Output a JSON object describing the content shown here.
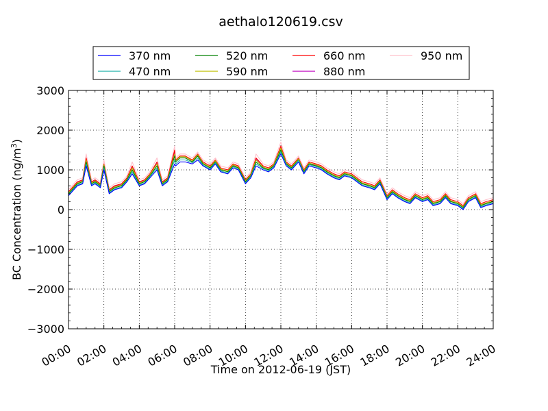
{
  "chart_data": {
    "type": "line",
    "title": "aethalo120619.csv",
    "xlabel": "Time on 2012-06-19 (JST)",
    "ylabel": "BC Concentration (ng/m3)",
    "ylabel_parts": {
      "text": "BC Concentration (ng/m",
      "superscript": "3",
      "close": ")"
    },
    "xlim": [
      "00:00",
      "24:00"
    ],
    "ylim": [
      -3000,
      3000
    ],
    "x_ticks": [
      "00:00",
      "02:00",
      "04:00",
      "06:00",
      "08:00",
      "10:00",
      "12:00",
      "14:00",
      "16:00",
      "18:00",
      "20:00",
      "22:00",
      "24:00"
    ],
    "y_ticks": [
      -3000,
      -2000,
      -1000,
      0,
      1000,
      2000,
      3000
    ],
    "y_tick_labels": [
      "−3000",
      "−2000",
      "−1000",
      "0",
      "1000",
      "2000",
      "3000"
    ],
    "grid": true,
    "legend_placement": "top-center, outside plot",
    "x_hours": [
      0,
      0.5,
      0.8,
      1.0,
      1.3,
      1.5,
      1.8,
      2.0,
      2.3,
      2.6,
      3.0,
      3.3,
      3.6,
      4.0,
      4.3,
      4.6,
      5.0,
      5.3,
      5.6,
      6.0,
      6.05,
      6.3,
      6.6,
      7.0,
      7.3,
      7.6,
      8.0,
      8.3,
      8.6,
      9.0,
      9.3,
      9.6,
      10.0,
      10.3,
      10.6,
      11.0,
      11.3,
      11.6,
      12.0,
      12.3,
      12.6,
      13.0,
      13.3,
      13.6,
      14.0,
      14.3,
      14.6,
      15.0,
      15.3,
      15.6,
      16.0,
      16.3,
      16.6,
      17.0,
      17.3,
      17.6,
      18.0,
      18.3,
      18.6,
      19.0,
      19.3,
      19.6,
      20.0,
      20.3,
      20.6,
      21.0,
      21.3,
      21.6,
      22.0,
      22.3,
      22.6,
      23.0,
      23.3,
      23.6,
      24.0
    ],
    "series": [
      {
        "name": "370 nm",
        "color": "#0000ff",
        "values": [
          350,
          600,
          650,
          1100,
          600,
          650,
          550,
          1000,
          400,
          500,
          550,
          700,
          900,
          600,
          650,
          800,
          1000,
          600,
          700,
          1150,
          1100,
          1200,
          1200,
          1150,
          1250,
          1100,
          1000,
          1150,
          950,
          900,
          1050,
          1000,
          650,
          800,
          1100,
          1000,
          950,
          1050,
          1400,
          1100,
          1000,
          1200,
          900,
          1100,
          1050,
          1000,
          900,
          800,
          750,
          850,
          800,
          700,
          600,
          550,
          500,
          650,
          250,
          400,
          300,
          200,
          150,
          300,
          200,
          250,
          100,
          150,
          300,
          150,
          100,
          0,
          200,
          300,
          50,
          100,
          150
        ]
      },
      {
        "name": "470 nm",
        "color": "#20b2aa",
        "values": [
          380,
          620,
          670,
          1150,
          620,
          670,
          570,
          1050,
          420,
          520,
          570,
          720,
          950,
          620,
          670,
          830,
          1050,
          620,
          720,
          1250,
          1150,
          1250,
          1250,
          1180,
          1300,
          1120,
          1020,
          1180,
          970,
          920,
          1080,
          1020,
          670,
          830,
          1150,
          1030,
          970,
          1080,
          1450,
          1130,
          1020,
          1240,
          920,
          1130,
          1080,
          1020,
          920,
          820,
          770,
          870,
          820,
          720,
          620,
          570,
          520,
          670,
          270,
          420,
          320,
          220,
          170,
          320,
          220,
          270,
          120,
          170,
          320,
          170,
          120,
          20,
          220,
          320,
          70,
          120,
          170
        ]
      },
      {
        "name": "520 nm",
        "color": "#008000",
        "values": [
          400,
          650,
          700,
          1200,
          650,
          700,
          600,
          1100,
          450,
          550,
          600,
          750,
          1000,
          650,
          700,
          850,
          1100,
          650,
          750,
          1350,
          1200,
          1300,
          1300,
          1200,
          1350,
          1150,
          1050,
          1200,
          1000,
          950,
          1100,
          1050,
          700,
          850,
          1200,
          1050,
          1000,
          1100,
          1500,
          1150,
          1050,
          1250,
          950,
          1150,
          1100,
          1050,
          950,
          850,
          800,
          900,
          850,
          750,
          650,
          600,
          550,
          700,
          300,
          450,
          350,
          250,
          200,
          350,
          250,
          300,
          150,
          200,
          350,
          200,
          150,
          50,
          250,
          350,
          100,
          150,
          200
        ]
      },
      {
        "name": "590 nm",
        "color": "#bfbf00",
        "values": [
          420,
          670,
          720,
          1250,
          670,
          720,
          620,
          1130,
          470,
          570,
          620,
          770,
          1050,
          670,
          720,
          880,
          1150,
          670,
          770,
          1400,
          1230,
          1330,
          1330,
          1230,
          1380,
          1170,
          1070,
          1230,
          1020,
          970,
          1130,
          1070,
          720,
          880,
          1250,
          1070,
          1020,
          1130,
          1550,
          1170,
          1070,
          1280,
          970,
          1170,
          1130,
          1070,
          970,
          870,
          820,
          920,
          870,
          770,
          670,
          620,
          570,
          720,
          320,
          470,
          370,
          270,
          220,
          370,
          270,
          320,
          170,
          220,
          370,
          220,
          170,
          70,
          270,
          370,
          120,
          170,
          220
        ]
      },
      {
        "name": "660 nm",
        "color": "#ff0000",
        "values": [
          450,
          700,
          750,
          1300,
          700,
          750,
          650,
          1150,
          500,
          600,
          650,
          800,
          1100,
          700,
          750,
          900,
          1200,
          700,
          800,
          1500,
          1250,
          1350,
          1350,
          1250,
          1400,
          1200,
          1100,
          1250,
          1050,
          1000,
          1150,
          1100,
          750,
          900,
          1300,
          1100,
          1050,
          1150,
          1600,
          1200,
          1100,
          1300,
          1000,
          1200,
          1150,
          1100,
          1000,
          900,
          850,
          950,
          900,
          800,
          700,
          650,
          600,
          750,
          350,
          500,
          400,
          300,
          250,
          400,
          300,
          350,
          200,
          250,
          400,
          250,
          200,
          100,
          300,
          400,
          150,
          200,
          250
        ]
      },
      {
        "name": "880 nm",
        "color": "#bf00bf",
        "values": [
          430,
          680,
          730,
          1270,
          680,
          730,
          630,
          1120,
          480,
          580,
          630,
          780,
          1070,
          680,
          730,
          880,
          1170,
          680,
          780,
          1450,
          1230,
          1330,
          1330,
          1230,
          1370,
          1170,
          1070,
          1220,
          1020,
          970,
          1120,
          1070,
          720,
          870,
          1270,
          1070,
          1020,
          1120,
          1570,
          1170,
          1070,
          1270,
          970,
          1170,
          1120,
          1070,
          970,
          870,
          820,
          920,
          870,
          770,
          670,
          620,
          570,
          720,
          320,
          470,
          370,
          270,
          220,
          370,
          270,
          320,
          170,
          220,
          370,
          220,
          170,
          70,
          270,
          370,
          120,
          170,
          220
        ]
      },
      {
        "name": "950 nm",
        "color": "#ffc0cb",
        "values": [
          500,
          750,
          800,
          1400,
          750,
          800,
          700,
          1250,
          550,
          650,
          700,
          850,
          1200,
          750,
          800,
          950,
          1300,
          750,
          850,
          1600,
          1300,
          1400,
          1400,
          1300,
          1450,
          1250,
          1150,
          1300,
          1100,
          1050,
          1200,
          1150,
          800,
          950,
          1400,
          1150,
          1100,
          1200,
          1700,
          1250,
          1150,
          1350,
          1050,
          1250,
          1200,
          1150,
          1050,
          950,
          900,
          1000,
          950,
          850,
          750,
          700,
          650,
          800,
          400,
          550,
          450,
          350,
          300,
          450,
          350,
          400,
          250,
          300,
          450,
          300,
          250,
          150,
          350,
          450,
          200,
          250,
          300
        ]
      }
    ]
  }
}
